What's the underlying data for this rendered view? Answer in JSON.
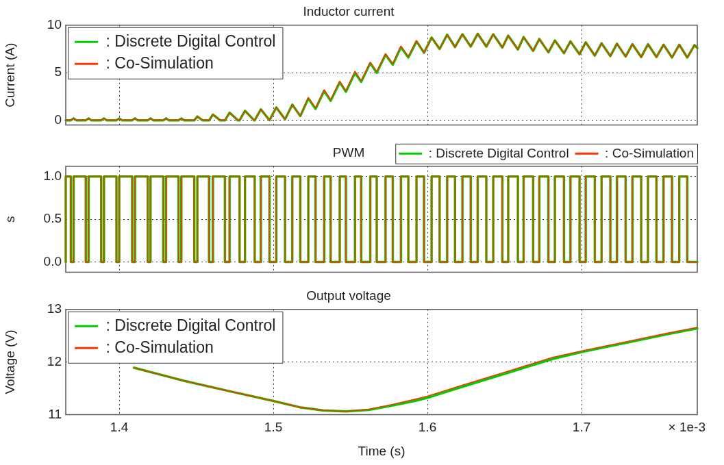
{
  "chart_data": [
    {
      "type": "line",
      "title": "Inductor current",
      "ylabel": "Current (A)",
      "xlim": [
        1.3653,
        1.7751
      ],
      "xticks": [
        1.4,
        1.5,
        1.6,
        1.7
      ],
      "ylim": [
        -0.5,
        10
      ],
      "yticks": [
        0,
        5,
        10
      ],
      "grid": true,
      "legend": "top left",
      "tick_labels": "y",
      "x": [
        1.3653,
        1.3686,
        1.3704,
        1.3722,
        1.3783,
        1.3801,
        1.3819,
        1.3883,
        1.3901,
        1.3919,
        1.3982,
        1.4,
        1.4018,
        1.4084,
        1.4102,
        1.412,
        1.4185,
        1.4203,
        1.4221,
        1.4286,
        1.4304,
        1.4322,
        1.4385,
        1.4403,
        1.4421,
        1.4487,
        1.4507,
        1.454,
        1.4583,
        1.4608,
        1.4655,
        1.4686,
        1.4716,
        1.477,
        1.4781,
        1.4816,
        1.4875,
        1.4879,
        1.4919,
        1.4975,
        1.5019,
        1.5076,
        1.5123,
        1.5175,
        1.5227,
        1.5274,
        1.533,
        1.5372,
        1.5431,
        1.5471,
        1.553,
        1.557,
        1.5629,
        1.5671,
        1.5728,
        1.5775,
        1.5828,
        1.5876,
        1.5929,
        1.5978,
        1.6027,
        1.6079,
        1.6128,
        1.6179,
        1.6227,
        1.6281,
        1.6326,
        1.6382,
        1.6427,
        1.6486,
        1.6524,
        1.6587,
        1.6624,
        1.6686,
        1.6726,
        1.6785,
        1.6827,
        1.6886,
        1.6928,
        1.6987,
        1.7027,
        1.7086,
        1.713,
        1.7187,
        1.723,
        1.7286,
        1.733,
        1.7387,
        1.7431,
        1.7486,
        1.7532,
        1.7587,
        1.7634,
        1.7686,
        1.7733,
        1.7751
      ],
      "series": [
        {
          "name": ": Discrete Digital Control",
          "color": "#00cc00",
          "values": [
            0,
            0,
            0.2,
            0,
            0,
            0.2,
            0,
            0,
            0.2,
            0,
            0,
            0.2,
            0,
            0,
            0.2,
            0,
            0,
            0.2,
            0,
            0,
            0.2,
            0,
            0,
            0.2,
            0,
            0,
            0.4,
            0,
            0,
            0.6,
            0,
            0,
            0.8,
            0,
            0,
            1.0,
            0,
            0,
            1.15,
            0,
            1.35,
            0.1,
            1.65,
            0.45,
            2.3,
            1.2,
            3.1,
            2.05,
            4.0,
            3.0,
            5.0,
            4.05,
            6.0,
            5.0,
            6.9,
            5.85,
            7.7,
            6.6,
            8.3,
            7.1,
            8.7,
            7.5,
            9.0,
            7.7,
            9.05,
            7.75,
            9.1,
            7.75,
            9.05,
            7.65,
            8.9,
            7.45,
            8.75,
            7.3,
            8.55,
            7.15,
            8.4,
            7.05,
            8.3,
            6.95,
            8.2,
            6.8,
            8.1,
            6.75,
            8.05,
            6.7,
            8.0,
            6.65,
            8.0,
            6.65,
            7.95,
            6.6,
            7.95,
            6.6,
            7.9,
            7.6
          ]
        },
        {
          "name": ": Co-Simulation",
          "color": "#ff3300",
          "values": [
            0,
            0,
            0.2,
            0,
            0,
            0.2,
            0,
            0,
            0.2,
            0,
            0,
            0.2,
            0,
            0,
            0.2,
            0,
            0,
            0.2,
            0,
            0,
            0.2,
            0,
            0,
            0.2,
            0,
            0,
            0.4,
            0,
            0,
            0.6,
            0,
            0,
            0.8,
            0,
            0,
            1.0,
            0,
            0,
            1.15,
            0,
            1.35,
            0.1,
            1.65,
            0.45,
            2.4,
            1.3,
            3.2,
            2.15,
            4.1,
            3.1,
            5.15,
            4.15,
            6.1,
            5.1,
            7.0,
            5.95,
            7.8,
            6.7,
            8.35,
            7.1,
            8.7,
            7.5,
            9.0,
            7.7,
            9.05,
            7.75,
            9.1,
            7.75,
            9.05,
            7.65,
            8.9,
            7.45,
            8.75,
            7.3,
            8.55,
            7.15,
            8.4,
            7.05,
            8.3,
            6.95,
            8.2,
            6.8,
            8.1,
            6.75,
            8.05,
            6.7,
            8.0,
            6.65,
            8.0,
            6.65,
            7.95,
            6.6,
            7.95,
            6.6,
            7.9,
            7.6
          ]
        }
      ]
    },
    {
      "type": "step",
      "title": "PWM",
      "ylabel": "s",
      "xlim": [
        1.3653,
        1.7751
      ],
      "xticks": [
        1.4,
        1.5,
        1.6,
        1.7
      ],
      "ylim": [
        -0.12,
        1.12
      ],
      "yticks": [
        {
          "value": 0,
          "label": "0.0"
        },
        {
          "value": 0.5,
          "label": "0.5"
        },
        {
          "value": 1,
          "label": "1.0"
        }
      ],
      "grid": true,
      "legend": "top right",
      "tick_labels": "y",
      "x": [
        1.3653,
        1.3686,
        1.3704,
        1.3783,
        1.3801,
        1.3883,
        1.3901,
        1.3982,
        1.4,
        1.4084,
        1.4102,
        1.4185,
        1.4203,
        1.4286,
        1.4304,
        1.4385,
        1.4403,
        1.4487,
        1.4507,
        1.4583,
        1.4608,
        1.4686,
        1.4716,
        1.4781,
        1.4816,
        1.4879,
        1.4919,
        1.4975,
        1.5019,
        1.5076,
        1.5123,
        1.5175,
        1.5227,
        1.5274,
        1.533,
        1.5372,
        1.5431,
        1.5471,
        1.553,
        1.557,
        1.5629,
        1.5671,
        1.5728,
        1.5775,
        1.5828,
        1.5876,
        1.5929,
        1.5978,
        1.6027,
        1.6079,
        1.6128,
        1.6179,
        1.6227,
        1.6281,
        1.6326,
        1.6382,
        1.6427,
        1.6486,
        1.6524,
        1.6587,
        1.6624,
        1.6686,
        1.6726,
        1.6785,
        1.6827,
        1.6886,
        1.6928,
        1.6987,
        1.7027,
        1.7086,
        1.713,
        1.7187,
        1.723,
        1.7286,
        1.733,
        1.7387,
        1.7431,
        1.7486,
        1.7532,
        1.7587,
        1.7634,
        1.7686,
        1.7733,
        1.7751
      ],
      "series": [
        {
          "name": ": Discrete Digital Control",
          "color": "#00cc00",
          "values": [
            0,
            1,
            0,
            1,
            0,
            1,
            0,
            1,
            0,
            1,
            0,
            1,
            0,
            1,
            0,
            1,
            0,
            1,
            0,
            1,
            0,
            1,
            0,
            1,
            0,
            1,
            0,
            1,
            0,
            1,
            0,
            1,
            0,
            1,
            0,
            1,
            0,
            1,
            0,
            1,
            0,
            1,
            0,
            1,
            0,
            1,
            0,
            1,
            0,
            1,
            0,
            1,
            0,
            1,
            0,
            1,
            0,
            1,
            0,
            1,
            0,
            1,
            0,
            1,
            0,
            1,
            0,
            1,
            0,
            1,
            0,
            1,
            0,
            1,
            0,
            1,
            0,
            1,
            0,
            1,
            0,
            1,
            0,
            0
          ]
        },
        {
          "name": ": Co-Simulation",
          "color": "#ff3300",
          "values": [
            0,
            1,
            0,
            1,
            0,
            1,
            0,
            1,
            0,
            1,
            0,
            1,
            0,
            1,
            0,
            1,
            0,
            1,
            0,
            1,
            0,
            1,
            0,
            1,
            0,
            1,
            0,
            1,
            0,
            1,
            0,
            1,
            0,
            1,
            0,
            1,
            0,
            1,
            0,
            1,
            0,
            1,
            0,
            1,
            0,
            1,
            0,
            1,
            0,
            1,
            0,
            1,
            0,
            1,
            0,
            1,
            0,
            1,
            0,
            1,
            0,
            1,
            0,
            1,
            0,
            1,
            0,
            1,
            0,
            1,
            0,
            1,
            0,
            1,
            0,
            1,
            0,
            1,
            0,
            1,
            0,
            1,
            0,
            0
          ]
        }
      ]
    },
    {
      "type": "line",
      "title": "Output voltage",
      "xlabel": "Time (s)",
      "ylabel": "Voltage (V)",
      "xlim": [
        1.3653,
        1.7751
      ],
      "xticks": [
        1.4,
        1.5,
        1.6,
        1.7
      ],
      "ylim": [
        11,
        13
      ],
      "yticks": [
        11,
        12,
        13
      ],
      "grid": true,
      "legend": "top left",
      "annotations": [
        "× 1e-3"
      ],
      "x": [
        1.4096,
        1.4424,
        1.4723,
        1.5,
        1.5171,
        1.5321,
        1.547,
        1.5619,
        1.5769,
        1.5918,
        1.6,
        1.6215,
        1.6516,
        1.6814,
        1.7,
        1.7263,
        1.7561,
        1.7751
      ],
      "series": [
        {
          "name": ": Discrete Digital Control",
          "color": "#00cc00",
          "values": [
            11.89,
            11.64,
            11.44,
            11.26,
            11.14,
            11.08,
            11.06,
            11.09,
            11.17,
            11.26,
            11.32,
            11.52,
            11.79,
            12.06,
            12.19,
            12.35,
            12.53,
            12.64
          ]
        },
        {
          "name": ": Co-Simulation",
          "color": "#ff3300",
          "values": [
            11.89,
            11.64,
            11.44,
            11.26,
            11.14,
            11.08,
            11.06,
            11.1,
            11.19,
            11.29,
            11.35,
            11.55,
            11.82,
            12.09,
            12.21,
            12.37,
            12.55,
            12.66
          ]
        }
      ]
    }
  ]
}
